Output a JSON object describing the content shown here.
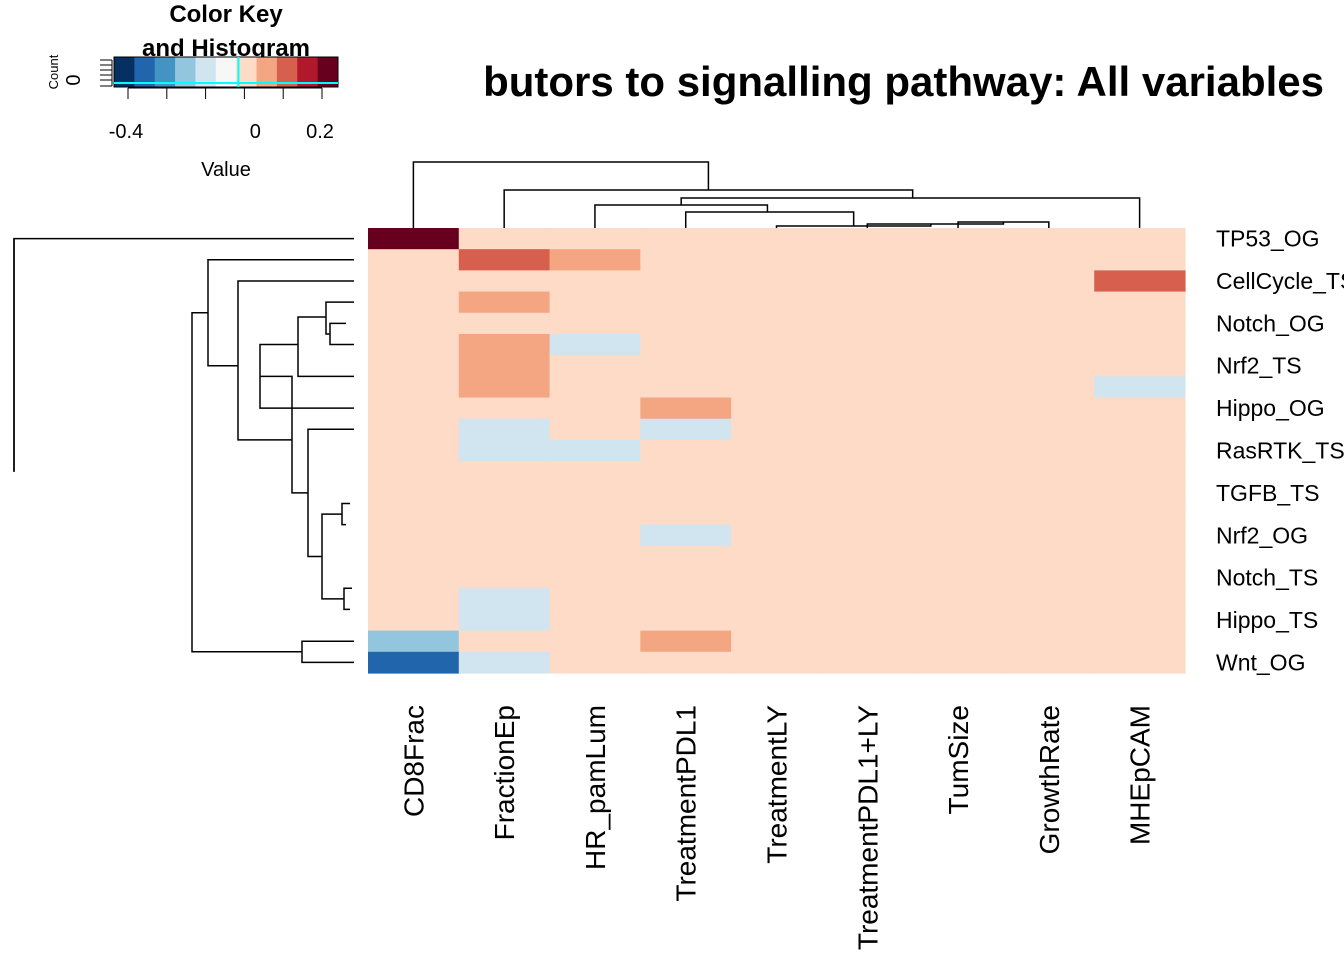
{
  "chart_data": {
    "type": "heatmap",
    "title": "butors to signalling pathway: All variables",
    "color_key": {
      "title_line1": "Color Key",
      "title_line2": "and Histogram",
      "count_label": "Count",
      "count_tick": "0",
      "value_label": "Value",
      "range": [
        -0.5,
        0.4
      ],
      "ticks": [
        {
          "value": -0.4,
          "label": "-0.4"
        },
        {
          "value": 0,
          "label": "0"
        },
        {
          "value": 0.2,
          "label": "0.2"
        }
      ],
      "colors": [
        "#053061",
        "#2166ac",
        "#4393c3",
        "#92c5de",
        "#d1e5f0",
        "#f7f7f7",
        "#fddbc7",
        "#f4a582",
        "#d6604d",
        "#b2182b",
        "#67001f"
      ]
    },
    "rows": [
      "TP53_OG",
      "",
      "CellCycle_TS",
      "",
      "Notch_OG",
      "",
      "Nrf2_TS",
      "",
      "Hippo_OG",
      "",
      "RasRTK_TS",
      "",
      "TGFB_TS",
      "",
      "Nrf2_OG",
      "",
      "Notch_TS",
      "",
      "Hippo_TS",
      "",
      "Wnt_OG"
    ],
    "columns": [
      "CD8Frac",
      "FractionEp",
      "HR_pamLum",
      "TreatmentPDL1",
      "TreatmentLY",
      "TreatmentPDL1+LY",
      "TumSize",
      "GrowthRate",
      "MHEpCAM"
    ],
    "values": [
      [
        0.38,
        0,
        0,
        0,
        0,
        0,
        0,
        0,
        0
      ],
      [
        0,
        0.22,
        0.1,
        0,
        0,
        0,
        0,
        0,
        0
      ],
      [
        0,
        0,
        0,
        0,
        0,
        0,
        0,
        0,
        0.22
      ],
      [
        0,
        0.1,
        0,
        0,
        0,
        0,
        0,
        0,
        0
      ],
      [
        0,
        0,
        0,
        0,
        0,
        0,
        0,
        0,
        0
      ],
      [
        0,
        0.1,
        -0.1,
        0,
        0,
        0,
        0,
        0,
        0
      ],
      [
        0,
        0.1,
        0,
        0,
        0,
        0,
        0,
        0,
        0
      ],
      [
        0,
        0.1,
        0,
        0,
        0,
        0,
        0,
        0,
        -0.1
      ],
      [
        0,
        0,
        0,
        0.1,
        0,
        0,
        0,
        0,
        0
      ],
      [
        0,
        -0.1,
        0,
        -0.1,
        0,
        0,
        0,
        0,
        0
      ],
      [
        0,
        -0.1,
        -0.1,
        0,
        0,
        0,
        0,
        0,
        0
      ],
      [
        0,
        0,
        0,
        0,
        0,
        0,
        0,
        0,
        0
      ],
      [
        0,
        0,
        0,
        0,
        0,
        0,
        0,
        0,
        0
      ],
      [
        0,
        0,
        0,
        0,
        0,
        0,
        0,
        0,
        0
      ],
      [
        0,
        0,
        0,
        -0.1,
        0,
        0,
        0,
        0,
        0
      ],
      [
        0,
        0,
        0,
        0,
        0,
        0,
        0,
        0,
        0
      ],
      [
        0,
        0,
        0,
        0,
        0,
        0,
        0,
        0,
        0
      ],
      [
        0,
        -0.1,
        0,
        0,
        0,
        0,
        0,
        0,
        0
      ],
      [
        0,
        -0.1,
        0,
        0,
        0,
        0,
        0,
        0,
        0
      ],
      [
        -0.22,
        0,
        0,
        0.1,
        0,
        0,
        0,
        0,
        0
      ],
      [
        -0.38,
        -0.1,
        0,
        0,
        0,
        0,
        0,
        0,
        0
      ]
    ]
  }
}
